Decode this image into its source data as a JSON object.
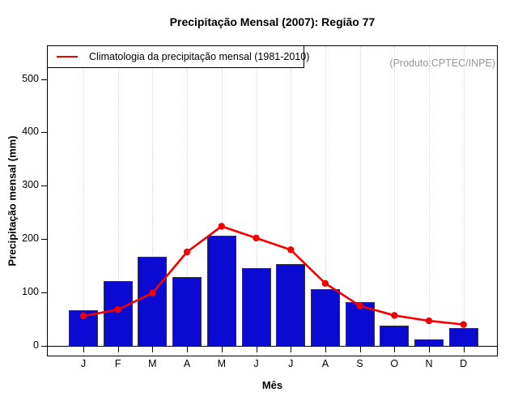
{
  "title": "Precipitação Mensal (2007): Região 77",
  "source_note": "(Produto:CPTEC/INPE)",
  "legend": {
    "label": "Climatologia da precipitação mensal (1981-2010)"
  },
  "colors": {
    "bar_fill": "#0a0ad2",
    "bar_border": "#333333",
    "line": "#f40000",
    "grid": "#d8d8d8",
    "note_text": "#969696",
    "axis": "#000000"
  },
  "chart_data": {
    "type": "bar",
    "title": "Precipitação Mensal (2007): Região 77",
    "xlabel": "Mês",
    "ylabel": "Precipitação mensal (mm)",
    "categories": [
      "J",
      "F",
      "M",
      "A",
      "M",
      "J",
      "J",
      "A",
      "S",
      "O",
      "N",
      "D"
    ],
    "series": [
      {
        "name": "Precipitação mensal (2007)",
        "type": "bar",
        "color": "#0a0ad2",
        "values": [
          67,
          121,
          167,
          129,
          207,
          146,
          153,
          106,
          82,
          38,
          12,
          33
        ]
      },
      {
        "name": "Climatologia da precipitação mensal (1981-2010)",
        "type": "line",
        "color": "#f40000",
        "values": [
          56,
          68,
          99,
          176,
          224,
          202,
          180,
          117,
          75,
          57,
          47,
          40
        ]
      }
    ],
    "ylim": [
      0,
      550
    ],
    "yticks": [
      0,
      100,
      200,
      300,
      400,
      500
    ],
    "grid": "vertical dotted line at each month",
    "legend_position": "top-left"
  }
}
